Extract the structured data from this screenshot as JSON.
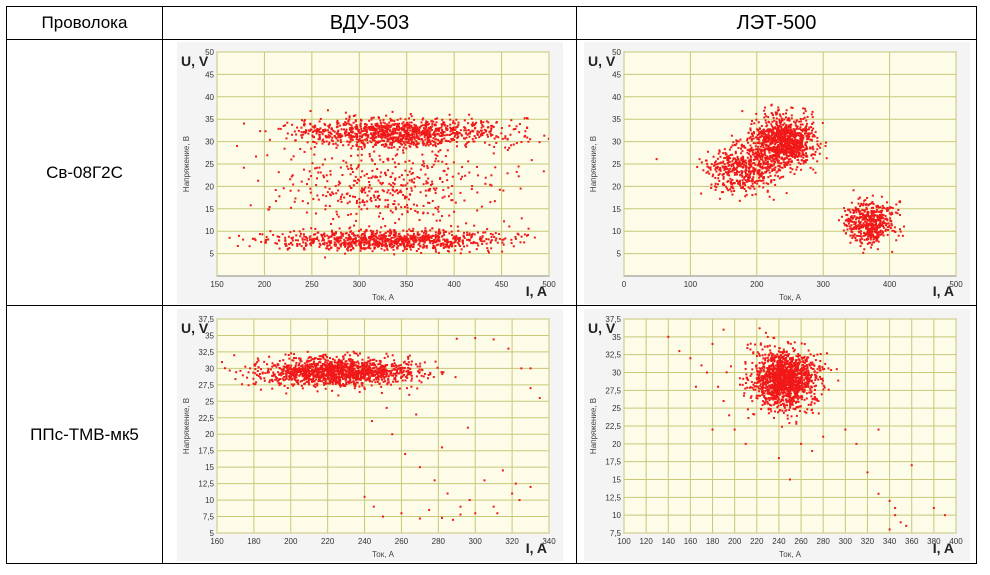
{
  "table": {
    "header": {
      "col0": "Проволока",
      "col1": "ВДУ-503",
      "col2": "ЛЭТ-500"
    },
    "rows": [
      {
        "wire": "Св-08Г2С"
      },
      {
        "wire": "ППс-ТМВ-мк5"
      }
    ]
  },
  "colors": {
    "points": "#f01818",
    "plot_bg": "#fcfce8",
    "grid": "#c8c878",
    "frame_bg": "#f4f4f4"
  },
  "chart_data": [
    {
      "type": "scatter",
      "title": "",
      "series": [],
      "xlabel": "Ток, А",
      "ylabel": "Напряжение, В",
      "axis_title_x": "I, A",
      "axis_title_y": "U, V",
      "xlim": [
        150,
        500
      ],
      "ylim": [
        0,
        50
      ],
      "xticks": [
        "150",
        "200",
        "250",
        "300",
        "350",
        "400",
        "450",
        "500"
      ],
      "yticks": [
        "5",
        "10",
        "15",
        "20",
        "25",
        "30",
        "35",
        "40",
        "45",
        "50"
      ],
      "x_tick_values": [
        150,
        200,
        250,
        300,
        350,
        400,
        450,
        500
      ],
      "y_tick_values": [
        5,
        10,
        15,
        20,
        25,
        30,
        35,
        40,
        45,
        50
      ],
      "point_clouds": [
        {
          "x_center": 340,
          "y_center": 32,
          "x_spread": 120,
          "y_spread": 3.5,
          "count": 1100
        },
        {
          "x_center": 330,
          "y_center": 8,
          "x_spread": 130,
          "y_spread": 2.5,
          "count": 900
        },
        {
          "x_center": 330,
          "y_center": 20,
          "x_spread": 120,
          "y_spread": 10,
          "count": 450
        }
      ]
    },
    {
      "type": "scatter",
      "title": "",
      "series": [],
      "xlabel": "Ток, А",
      "ylabel": "Напряжение, В",
      "axis_title_x": "I, A",
      "axis_title_y": "U, V",
      "xlim": [
        0,
        500
      ],
      "ylim": [
        0,
        50
      ],
      "xticks": [
        "0",
        "100",
        "200",
        "300",
        "400",
        "500"
      ],
      "yticks": [
        "5",
        "10",
        "15",
        "20",
        "25",
        "30",
        "35",
        "40",
        "45",
        "50"
      ],
      "x_tick_values": [
        0,
        100,
        200,
        300,
        400,
        500
      ],
      "y_tick_values": [
        5,
        10,
        15,
        20,
        25,
        30,
        35,
        40,
        45,
        50
      ],
      "point_clouds": [
        {
          "x_center": 240,
          "y_center": 30,
          "x_spread": 50,
          "y_spread": 6,
          "count": 1000
        },
        {
          "x_center": 180,
          "y_center": 24,
          "x_spread": 60,
          "y_spread": 6,
          "count": 500
        },
        {
          "x_center": 370,
          "y_center": 12,
          "x_spread": 40,
          "y_spread": 5,
          "count": 500
        }
      ]
    },
    {
      "type": "scatter",
      "title": "",
      "series": [],
      "xlabel": "Ток, А",
      "ylabel": "Напряжение, В",
      "axis_title_x": "I, A",
      "axis_title_y": "U, V",
      "xlim": [
        160,
        340
      ],
      "ylim": [
        5,
        37.5
      ],
      "xticks": [
        "160",
        "180",
        "200",
        "220",
        "240",
        "260",
        "280",
        "300",
        "320",
        "340"
      ],
      "yticks": [
        "5",
        "7,5",
        "10",
        "12,5",
        "15",
        "17,5",
        "20",
        "22,5",
        "25",
        "27,5",
        "30",
        "32,5",
        "35",
        "37,5"
      ],
      "x_tick_values": [
        160,
        180,
        200,
        220,
        240,
        260,
        280,
        300,
        320,
        340
      ],
      "y_tick_values": [
        5,
        7.5,
        10,
        12.5,
        15,
        17.5,
        20,
        22.5,
        25,
        27.5,
        30,
        32.5,
        35,
        37.5
      ],
      "point_clouds": [
        {
          "x_center": 225,
          "y_center": 29.5,
          "x_spread": 45,
          "y_spread": 2.2,
          "count": 1400
        }
      ],
      "sparse_points": [
        [
          290,
          34.5
        ],
        [
          300,
          34.6
        ],
        [
          310,
          34.4
        ],
        [
          318,
          33
        ],
        [
          325,
          30
        ],
        [
          330,
          27
        ],
        [
          335,
          25.5
        ],
        [
          255,
          20
        ],
        [
          262,
          17
        ],
        [
          270,
          15
        ],
        [
          278,
          13
        ],
        [
          285,
          11
        ],
        [
          292,
          9
        ],
        [
          300,
          8
        ],
        [
          310,
          9
        ],
        [
          320,
          11
        ],
        [
          330,
          12
        ],
        [
          258,
          28
        ],
        [
          268,
          23
        ],
        [
          282,
          18
        ],
        [
          245,
          9
        ],
        [
          250,
          7.5
        ],
        [
          260,
          8
        ],
        [
          275,
          8.5
        ],
        [
          288,
          7
        ],
        [
          297,
          10
        ],
        [
          305,
          13
        ],
        [
          315,
          14.5
        ],
        [
          322,
          12.5
        ],
        [
          240,
          10.5
        ],
        [
          252,
          24
        ],
        [
          244,
          22
        ],
        [
          296,
          21
        ],
        [
          263,
          27
        ],
        [
          330,
          30
        ],
        [
          270,
          7.2
        ],
        [
          282,
          7.3
        ],
        [
          292,
          7.8
        ],
        [
          312,
          8
        ],
        [
          324,
          10
        ]
      ]
    },
    {
      "type": "scatter",
      "title": "",
      "series": [],
      "xlabel": "Ток, А",
      "ylabel": "Напряжение, В",
      "axis_title_x": "I, A",
      "axis_title_y": "U, V",
      "xlim": [
        100,
        400
      ],
      "ylim": [
        7.5,
        37.5
      ],
      "xticks": [
        "100",
        "120",
        "140",
        "160",
        "180",
        "200",
        "220",
        "240",
        "260",
        "280",
        "300",
        "320",
        "340",
        "360",
        "380",
        "400"
      ],
      "yticks": [
        "7,5",
        "10",
        "12,5",
        "15",
        "17,5",
        "20",
        "22,5",
        "25",
        "27,5",
        "30",
        "32,5",
        "35",
        "37,5"
      ],
      "x_tick_values": [
        100,
        120,
        140,
        160,
        180,
        200,
        220,
        240,
        260,
        280,
        300,
        320,
        340,
        360,
        380,
        400
      ],
      "y_tick_values": [
        7.5,
        10,
        12.5,
        15,
        17.5,
        20,
        22.5,
        25,
        27.5,
        30,
        32.5,
        35,
        37.5
      ],
      "point_clouds": [
        {
          "x_center": 245,
          "y_center": 29,
          "x_spread": 32,
          "y_spread": 4.5,
          "count": 1400
        }
      ],
      "sparse_points": [
        [
          140,
          35
        ],
        [
          150,
          33
        ],
        [
          160,
          32
        ],
        [
          170,
          31
        ],
        [
          180,
          34
        ],
        [
          185,
          28
        ],
        [
          190,
          26
        ],
        [
          180,
          22
        ],
        [
          195,
          24
        ],
        [
          200,
          22
        ],
        [
          210,
          20
        ],
        [
          190,
          36
        ],
        [
          175,
          30
        ],
        [
          165,
          28
        ],
        [
          300,
          22
        ],
        [
          310,
          20
        ],
        [
          320,
          16
        ],
        [
          330,
          13
        ],
        [
          340,
          12
        ],
        [
          345,
          10
        ],
        [
          350,
          9
        ],
        [
          355,
          8.5
        ],
        [
          340,
          8
        ],
        [
          345,
          11
        ],
        [
          360,
          17
        ],
        [
          380,
          11
        ],
        [
          390,
          10
        ],
        [
          330,
          22
        ],
        [
          240,
          18
        ],
        [
          250,
          15
        ],
        [
          260,
          20
        ],
        [
          270,
          19
        ],
        [
          280,
          21
        ]
      ]
    }
  ]
}
